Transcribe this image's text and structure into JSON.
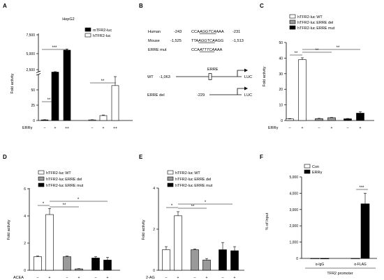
{
  "panels": {
    "A": {
      "letter": "A",
      "title": "HepG2",
      "ylabel": "Fold activity",
      "yticks_low": [
        "0",
        "25",
        "50"
      ],
      "yticks_high": [
        "2,500",
        "5,000",
        "7,500"
      ],
      "xlabel": "ERRγ",
      "xticks": [
        "–",
        "+",
        "++",
        "–",
        "+",
        "++"
      ],
      "legend": [
        "mTFR2-luc",
        "hTFR2-luc"
      ],
      "sig": [
        "***",
        "**",
        "**"
      ]
    },
    "B": {
      "letter": "B",
      "rows": [
        {
          "name": "Human",
          "start": "-243",
          "pre": "CCA",
          "motif": "AGGTCA",
          "post": "AAA",
          "end": "-231"
        },
        {
          "name": "Mouse",
          "start": "-1,525",
          "pre": "TTA",
          "motif": "AGGTCA",
          "post": "AGG",
          "end": "-1,513"
        },
        {
          "name": "ERRE mut",
          "start": "",
          "pre": "CCA",
          "motif": "ATTTCA",
          "post": "AAA",
          "end": ""
        }
      ],
      "wt_label": "WT",
      "wt_pos": "-1,063",
      "erre_label": "ERRE",
      "del_label": "ERRE del",
      "del_pos": "-229",
      "luc": "LUC"
    },
    "C": {
      "letter": "C",
      "ylabel": "Fold activity",
      "yticks": [
        "0",
        "10",
        "20",
        "30",
        "40",
        "50"
      ],
      "xlabel": "ERRγ",
      "xticks": [
        "–",
        "+",
        "–",
        "+",
        "–",
        "+"
      ],
      "legend": [
        "hTFR2-luc WT",
        "hTFR2-luc ERRE del",
        "hTFR2-luc ERRE mut"
      ],
      "sig": [
        "**",
        "**",
        "**"
      ]
    },
    "D": {
      "letter": "D",
      "ylabel": "Fold activity",
      "yticks": [
        "0",
        "2",
        "4",
        "6"
      ],
      "xlabel": "ACEA",
      "xticks": [
        "–",
        "+",
        "–",
        "+",
        "–",
        "+"
      ],
      "legend": [
        "hTFR2-luc WT",
        "hTFR2-luc ERRE del",
        "hTFR2-luc ERRE mut"
      ],
      "sig": [
        "*",
        "**",
        "*"
      ]
    },
    "E": {
      "letter": "E",
      "ylabel": "Fold activity",
      "yticks": [
        "0",
        "2",
        "4"
      ],
      "xlabel": "2-AG",
      "xticks": [
        "–",
        "+",
        "–",
        "+",
        "–",
        "+"
      ],
      "legend": [
        "hTFR2-luc WT",
        "hTFR2-luc ERRE del",
        "hTFR2-luc ERRE mut"
      ],
      "sig": [
        "*",
        "**",
        "*"
      ]
    },
    "F": {
      "letter": "F",
      "ylabel": "% of Input",
      "yticks": [
        "0",
        "1,000",
        "2,000",
        "3,000",
        "4,000",
        "5,000"
      ],
      "xticks": [
        "α-IgG",
        "α-FLAG"
      ],
      "xlabel": "TFR2 promoter",
      "legend": [
        "Con",
        "ERRγ"
      ],
      "sig": [
        "***"
      ]
    }
  },
  "chart_data": [
    {
      "type": "bar",
      "panel": "A",
      "ylabel": "Fold activity",
      "xlabel": "ERRγ",
      "categories": [
        "–",
        "+",
        "++",
        "–",
        "+",
        "++"
      ],
      "ylim": [
        0,
        7500
      ],
      "y_axis_break": [
        60,
        1500
      ],
      "series": [
        {
          "name": "mTFR2-luc",
          "values": [
            1,
            2150,
            5300,
            null,
            null,
            null
          ],
          "errors": [
            0.3,
            60,
            160,
            null,
            null,
            null
          ]
        },
        {
          "name": "hTFR2-luc",
          "values": [
            null,
            null,
            null,
            1,
            8,
            57
          ],
          "errors": [
            null,
            null,
            null,
            0.3,
            1,
            4
          ]
        }
      ]
    },
    {
      "type": "bar",
      "panel": "C",
      "ylabel": "Fold activity",
      "xlabel": "ERRγ",
      "categories": [
        "–",
        "+",
        "–",
        "+",
        "–",
        "+"
      ],
      "ylim": [
        0,
        50
      ],
      "series": [
        {
          "name": "hTFR2-luc WT",
          "values": [
            1,
            39,
            null,
            null,
            null,
            null
          ],
          "errors": [
            0.2,
            1.2,
            null,
            null,
            null,
            null
          ]
        },
        {
          "name": "hTFR2-luc ERRE del",
          "values": [
            null,
            null,
            1.2,
            1.8,
            null,
            null
          ],
          "errors": [
            null,
            null,
            0.2,
            0.2,
            null,
            null
          ]
        },
        {
          "name": "hTFR2-luc ERRE mut",
          "values": [
            null,
            null,
            null,
            null,
            1.1,
            4.7
          ],
          "errors": [
            null,
            null,
            null,
            null,
            0.2,
            0.9
          ]
        }
      ]
    },
    {
      "type": "bar",
      "panel": "D",
      "ylabel": "Fold activity",
      "xlabel": "ACEA",
      "categories": [
        "–",
        "+",
        "–",
        "+",
        "–",
        "+"
      ],
      "ylim": [
        0,
        6
      ],
      "series": [
        {
          "name": "hTFR2-luc WT",
          "values": [
            1.0,
            4.1,
            null,
            null,
            null,
            null
          ],
          "errors": [
            0.05,
            0.45,
            null,
            null,
            null,
            null
          ]
        },
        {
          "name": "hTFR2-luc ERRE del",
          "values": [
            null,
            null,
            1.0,
            0.1,
            null,
            null
          ],
          "errors": [
            null,
            null,
            0.05,
            0.02,
            null,
            null
          ]
        },
        {
          "name": "hTFR2-luc ERRE mut",
          "values": [
            null,
            null,
            null,
            null,
            0.9,
            0.75
          ],
          "errors": [
            null,
            null,
            null,
            null,
            0.1,
            0.2
          ]
        }
      ]
    },
    {
      "type": "bar",
      "panel": "E",
      "ylabel": "Fold activity",
      "xlabel": "2-AG",
      "categories": [
        "–",
        "+",
        "–",
        "+",
        "–",
        "+"
      ],
      "ylim": [
        0,
        4
      ],
      "series": [
        {
          "name": "hTFR2-luc WT",
          "values": [
            1.0,
            2.65,
            null,
            null,
            null,
            null
          ],
          "errors": [
            0.15,
            0.2,
            null,
            null,
            null,
            null
          ]
        },
        {
          "name": "hTFR2-luc ERRE del",
          "values": [
            null,
            null,
            1.0,
            0.5,
            null,
            null
          ],
          "errors": [
            null,
            null,
            0.04,
            0.07,
            null,
            null
          ]
        },
        {
          "name": "hTFR2-luc ERRE mut",
          "values": [
            null,
            null,
            null,
            null,
            1.0,
            0.95
          ],
          "errors": [
            null,
            null,
            null,
            null,
            0.35,
            0.2
          ]
        }
      ]
    },
    {
      "type": "bar",
      "panel": "F",
      "ylabel": "% of Input",
      "xlabel": "TFR2 promoter",
      "categories": [
        "α-IgG",
        "α-FLAG"
      ],
      "ylim": [
        0,
        5000
      ],
      "series": [
        {
          "name": "Con",
          "values": [
            5,
            5
          ],
          "errors": [
            2,
            2
          ]
        },
        {
          "name": "ERRγ",
          "values": [
            5,
            3350
          ],
          "errors": [
            2,
            650
          ]
        }
      ]
    }
  ]
}
